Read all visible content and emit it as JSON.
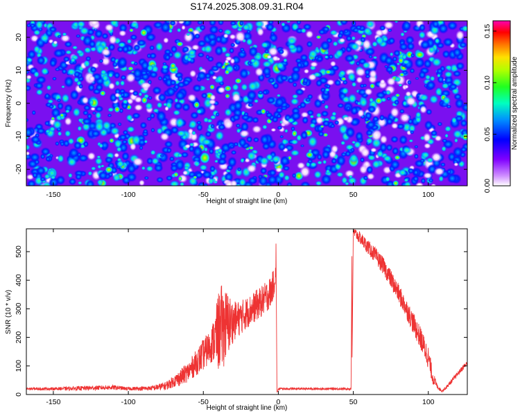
{
  "title": "S174.2025.308.09.31.R04",
  "chart_data": [
    {
      "type": "heatmap",
      "title": "S174.2025.308.09.31.R04",
      "xlabel": "Height of straight line (km)",
      "ylabel": "Frequency (Hz)",
      "xlim": [
        -168,
        126
      ],
      "ylim": [
        -25,
        25
      ],
      "x_ticks": [
        -150,
        -100,
        -50,
        0,
        50,
        100
      ],
      "y_ticks": [
        -20,
        -10,
        0,
        10,
        20
      ],
      "colorbar": {
        "label": "Normalized spectral amplitude",
        "range": [
          0.0,
          0.16
        ],
        "ticks": [
          0.0,
          0.05,
          0.1,
          0.15
        ],
        "tick_labels": [
          "0.00",
          "0.05",
          "0.10",
          "0.15"
        ],
        "colors": [
          "#ffffff",
          "#c060ff",
          "#8000ff",
          "#0000ff",
          "#00b0ff",
          "#00ff90",
          "#30ff00",
          "#d0ff00",
          "#ffa000",
          "#ff0000",
          "#ff00a0"
        ]
      },
      "description": "speckled noise field, amplitudes mostly 0.02-0.06 with scattered peaks up to ~0.14"
    },
    {
      "type": "line",
      "xlabel": "Height of straight line (km)",
      "ylabel": "SNR (10 * v/v)",
      "xlim": [
        -168,
        126
      ],
      "ylim": [
        0,
        580
      ],
      "x_ticks": [
        -150,
        -100,
        -50,
        0,
        50,
        100
      ],
      "y_ticks": [
        0,
        100,
        200,
        300,
        400,
        500
      ],
      "series": [
        {
          "name": "SNR",
          "color": "#ee3333",
          "x": [
            -168,
            -150,
            -130,
            -110,
            -100,
            -85,
            -75,
            -70,
            -65,
            -60,
            -55,
            -50,
            -45,
            -42,
            -40,
            -38,
            -36,
            -34,
            -30,
            -25,
            -20,
            -15,
            -10,
            -5,
            -3,
            -1.5,
            -1,
            0,
            1,
            10,
            20,
            30,
            40,
            47,
            48,
            49,
            50,
            55,
            60,
            65,
            70,
            75,
            80,
            85,
            90,
            95,
            100,
            103,
            106,
            109,
            112,
            116,
            120,
            124,
            126
          ],
          "values": [
            20,
            20,
            22,
            25,
            20,
            22,
            30,
            45,
            60,
            80,
            110,
            140,
            170,
            200,
            220,
            235,
            240,
            245,
            255,
            270,
            290,
            310,
            330,
            360,
            390,
            430,
            5,
            18,
            20,
            20,
            20,
            20,
            20,
            20,
            20,
            20,
            570,
            545,
            515,
            485,
            450,
            405,
            355,
            305,
            250,
            195,
            130,
            60,
            28,
            12,
            25,
            50,
            75,
            100,
            108
          ],
          "amplitude": [
            5,
            5,
            8,
            8,
            6,
            8,
            15,
            20,
            30,
            35,
            45,
            55,
            60,
            90,
            140,
            150,
            140,
            120,
            70,
            60,
            55,
            55,
            55,
            55,
            50,
            40,
            0,
            4,
            4,
            4,
            4,
            4,
            4,
            4,
            4,
            4,
            18,
            22,
            25,
            28,
            30,
            32,
            34,
            35,
            38,
            40,
            40,
            25,
            8,
            4,
            6,
            8,
            8,
            10,
            10
          ]
        }
      ]
    }
  ]
}
